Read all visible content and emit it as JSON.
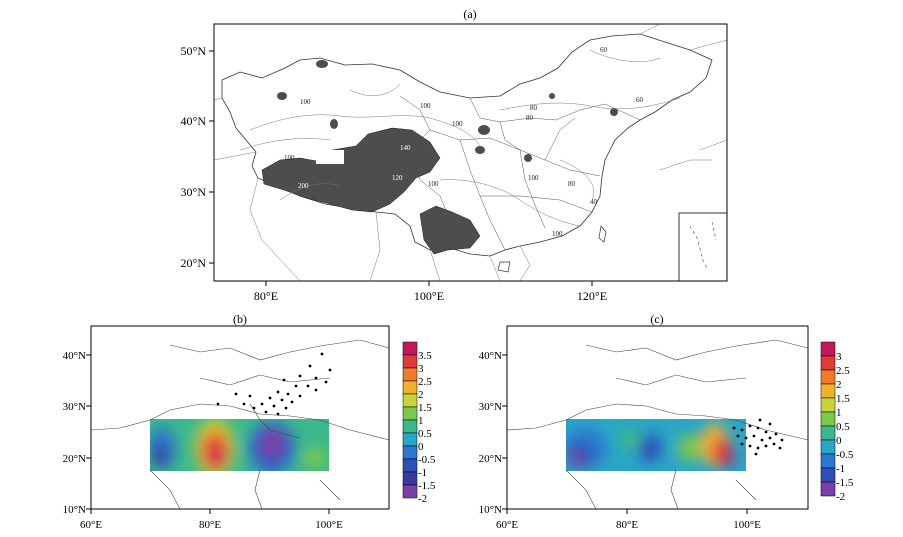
{
  "panel_a": {
    "caption": "(a)",
    "lat_labels": [
      "50°N",
      "40°N",
      "30°N",
      "20°N"
    ],
    "lon_labels": [
      "80°E",
      "100°E",
      "120°E"
    ],
    "contour_labels": [
      "100",
      "100",
      "140",
      "100",
      "120",
      "100",
      "200",
      "100",
      "100",
      "80",
      "80",
      "80",
      "60",
      "60",
      "40",
      "100"
    ]
  },
  "panel_b": {
    "caption": "(b)",
    "lat_labels": [
      "40°N",
      "30°N",
      "20°N",
      "10°N"
    ],
    "lon_labels": [
      "60°E",
      "80°E",
      "100°E"
    ],
    "colorbar_ticks": [
      "3.5",
      "3",
      "2.5",
      "2",
      "1.5",
      "1",
      "0.5",
      "0",
      "-0.5",
      "-1",
      "-1.5",
      "-2"
    ]
  },
  "panel_c": {
    "caption": "(c)",
    "lat_labels": [
      "40°N",
      "30°N",
      "20°N",
      "10°N"
    ],
    "lon_labels": [
      "60°E",
      "80°E",
      "100°E"
    ],
    "colorbar_ticks": [
      "3",
      "2.5",
      "2",
      "1.5",
      "1",
      "0.5",
      "0",
      "-0.5",
      "-1",
      "-1.5",
      "-2"
    ]
  },
  "colors": {
    "shade": "#4d4d4d",
    "colorbar": [
      "#c2185b",
      "#e03a3a",
      "#f07a2a",
      "#f0b030",
      "#c8d23a",
      "#7cc84a",
      "#3cb88c",
      "#2aa6c6",
      "#2c78d0",
      "#2f4fb8",
      "#3a3a9e",
      "#7b3fa6"
    ]
  }
}
